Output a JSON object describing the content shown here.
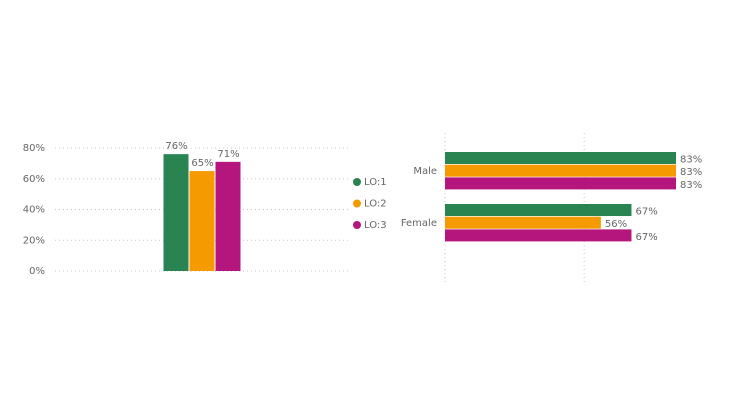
{
  "chart_data": [
    {
      "type": "bar",
      "categories": [
        null
      ],
      "series": [
        {
          "name": "LO:1",
          "color": "#2a8452",
          "values": [
            76
          ],
          "value_labels": [
            "76%"
          ]
        },
        {
          "name": "LO:2",
          "color": "#f59a00",
          "values": [
            65
          ],
          "value_labels": [
            "65%"
          ]
        },
        {
          "name": "LO:3",
          "color": "#b5167e",
          "values": [
            71
          ],
          "value_labels": [
            "71%"
          ]
        }
      ],
      "ylim": [
        0,
        80
      ],
      "yticks": [
        {
          "value": 0,
          "label": "0%"
        },
        {
          "value": 20,
          "label": "20%"
        },
        {
          "value": 40,
          "label": "40%"
        },
        {
          "value": 60,
          "label": "60%"
        },
        {
          "value": 80,
          "label": "80%"
        }
      ],
      "grid": true,
      "legend": "right"
    },
    {
      "type": "hbar",
      "categories": [
        "Male",
        "Female"
      ],
      "series": [
        {
          "color": "#2a8452",
          "values": [
            83,
            67
          ],
          "value_labels": [
            "83%",
            "67%"
          ]
        },
        {
          "color": "#f59a00",
          "values": [
            83,
            56
          ],
          "value_labels": [
            "83%",
            "56%"
          ]
        },
        {
          "color": "#b5167e",
          "values": [
            83,
            67
          ],
          "value_labels": [
            "83%",
            "67%"
          ]
        }
      ],
      "xlim": [
        0,
        83
      ],
      "xticks": [
        0,
        50
      ],
      "grid": true
    }
  ]
}
